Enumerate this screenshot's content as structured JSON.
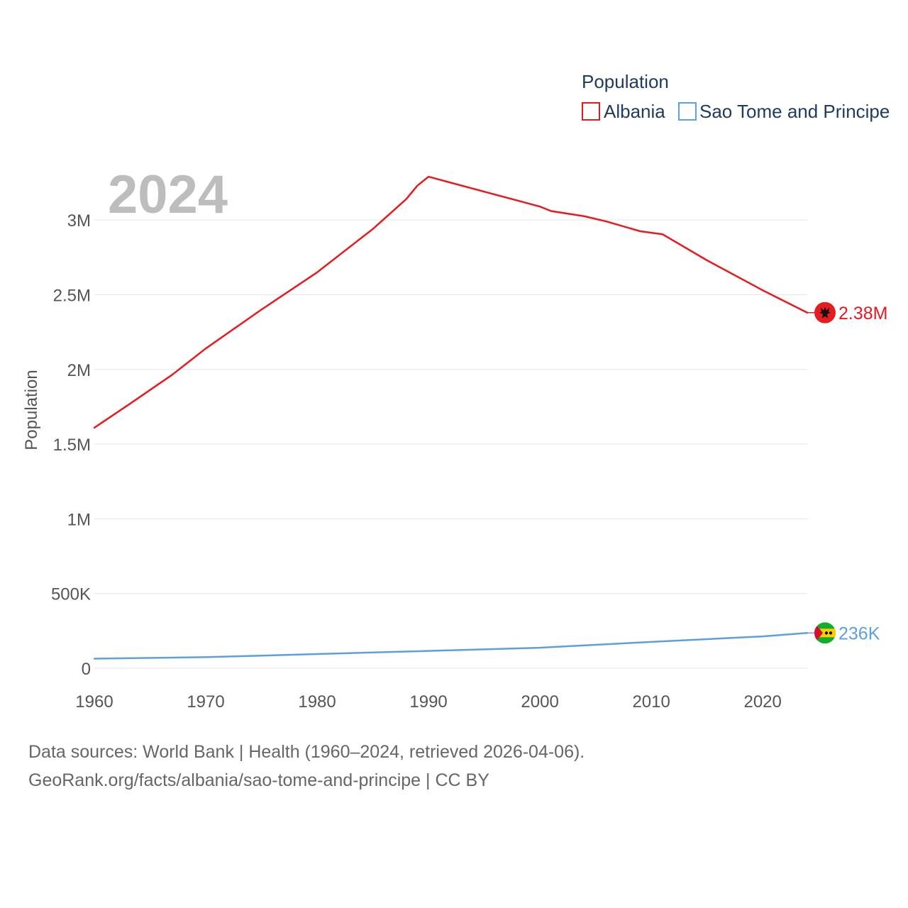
{
  "chart_data": {
    "type": "line",
    "legend_title": "Population",
    "year_label": "2024",
    "ylabel": "Population",
    "xlabel": "",
    "xlim": [
      1960,
      2024
    ],
    "ylim": [
      0,
      3300000
    ],
    "x_ticks": [
      1960,
      1970,
      1980,
      1990,
      2000,
      2010,
      2020
    ],
    "x_tick_labels": [
      "1960",
      "1970",
      "1980",
      "1990",
      "2000",
      "2010",
      "2020"
    ],
    "y_ticks": [
      0,
      500000,
      1000000,
      1500000,
      2000000,
      2500000,
      3000000
    ],
    "y_tick_labels": [
      "0",
      "500K",
      "1M",
      "1.5M",
      "2M",
      "2.5M",
      "3M"
    ],
    "grid": true,
    "legend_position": "top-right",
    "series": [
      {
        "name": "Albania",
        "color": "#e8191f",
        "end_label": "2.38M",
        "flag_icon": "albania-flag-icon",
        "x": [
          1960,
          1963,
          1967,
          1970,
          1975,
          1980,
          1985,
          1988,
          1989,
          1990,
          1995,
          2000,
          2001,
          2004,
          2006,
          2009,
          2011,
          2015,
          2020,
          2024
        ],
        "values": [
          1610000,
          1760000,
          1965000,
          2140000,
          2400000,
          2650000,
          2940000,
          3140000,
          3230000,
          3290000,
          3190000,
          3090000,
          3060000,
          3025000,
          2990000,
          2925000,
          2905000,
          2730000,
          2530000,
          2380000
        ]
      },
      {
        "name": "Sao Tome and Principe",
        "color": "#5ca0e0",
        "end_label": "236K",
        "flag_icon": "sao-tome-flag-icon",
        "x": [
          1960,
          1970,
          1980,
          1990,
          2000,
          2010,
          2020,
          2024
        ],
        "values": [
          64000,
          74000,
          95000,
          116000,
          137000,
          176000,
          213000,
          236000
        ]
      }
    ]
  },
  "sources": {
    "line1": "Data sources: World Bank | Health (1960–2024, retrieved 2026-04-06).",
    "line2": "GeoRank.org/facts/albania/sao-tome-and-principe | CC BY"
  }
}
